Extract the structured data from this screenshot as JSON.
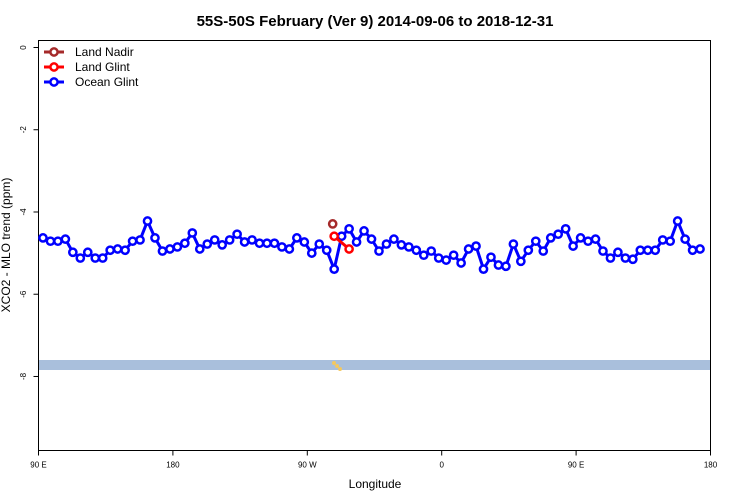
{
  "chart_data": {
    "type": "line",
    "title": "55S-50S February (Ver 9)   2014-09-06 to 2018-12-31",
    "x_label": "Longitude",
    "y_label": "XCO2 - MLO trend (ppm)",
    "xlim": [
      90,
      540
    ],
    "ylim": [
      -9.8,
      0.17
    ],
    "xticks": [
      {
        "value": 90,
        "label": "90 E"
      },
      180,
      {
        "value": 270,
        "label": "90 W"
      },
      {
        "value": 360,
        "label": "0"
      },
      {
        "value": 450,
        "label": "90 E"
      },
      {
        "value": 540,
        "label": "180"
      }
    ],
    "yticks": [
      0,
      -2,
      -4,
      -6,
      -8
    ],
    "legend": "top-left",
    "series": [
      {
        "name": "Land Nadir",
        "color": "#a52a2a",
        "x": [
          287
        ],
        "values": [
          -4.29
        ]
      },
      {
        "name": "Land Glint",
        "color": "#ff0000",
        "x": [
          288,
          298
        ],
        "values": [
          -4.59,
          -4.9
        ]
      },
      {
        "name": "Ocean Glint",
        "color": "#0000ff",
        "x": [
          93,
          98,
          103,
          108,
          113,
          118,
          123,
          128,
          133,
          138,
          143,
          148,
          153,
          158,
          163,
          168,
          173,
          178,
          183,
          188,
          193,
          198,
          203,
          208,
          213,
          218,
          223,
          228,
          233,
          238,
          243,
          248,
          253,
          258,
          263,
          268,
          273,
          278,
          283,
          288,
          293,
          298,
          303,
          308,
          313,
          318,
          323,
          328,
          333,
          338,
          343,
          348,
          353,
          358,
          363,
          368,
          373,
          378,
          383,
          388,
          393,
          398,
          403,
          408,
          413,
          418,
          423,
          428,
          433,
          438,
          443,
          448,
          453,
          458,
          463,
          468,
          473,
          478,
          483,
          488,
          493,
          498,
          503,
          508,
          513,
          518,
          523,
          528,
          533
        ],
        "values": [
          -4.63,
          -4.71,
          -4.71,
          -4.66,
          -4.98,
          -5.12,
          -4.98,
          -5.12,
          -5.12,
          -4.93,
          -4.9,
          -4.93,
          -4.71,
          -4.68,
          -4.22,
          -4.63,
          -4.95,
          -4.9,
          -4.85,
          -4.76,
          -4.51,
          -4.9,
          -4.78,
          -4.68,
          -4.8,
          -4.68,
          -4.54,
          -4.73,
          -4.68,
          -4.76,
          -4.76,
          -4.76,
          -4.85,
          -4.9,
          -4.63,
          -4.73,
          -5.0,
          -4.78,
          -4.93,
          -5.39,
          -4.59,
          -4.41,
          -4.73,
          -4.46,
          -4.66,
          -4.95,
          -4.78,
          -4.66,
          -4.8,
          -4.85,
          -4.93,
          -5.05,
          -4.95,
          -5.12,
          -5.17,
          -5.05,
          -5.24,
          -4.9,
          -4.83,
          -5.39,
          -5.1,
          -5.29,
          -5.32,
          -4.78,
          -5.2,
          -4.93,
          -4.71,
          -4.95,
          -4.63,
          -4.54,
          -4.41,
          -4.83,
          -4.63,
          -4.71,
          -4.66,
          -4.95,
          -5.12,
          -4.98,
          -5.12,
          -5.15,
          -4.93,
          -4.93,
          -4.93,
          -4.68,
          -4.71,
          -4.22,
          -4.66,
          -4.93,
          -4.9
        ]
      }
    ]
  }
}
